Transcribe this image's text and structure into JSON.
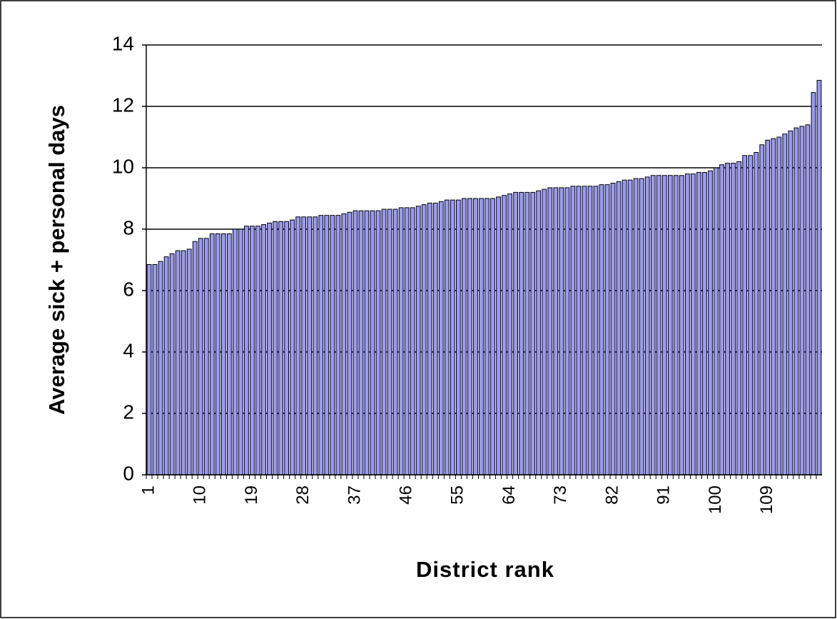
{
  "chart_data": {
    "type": "bar",
    "y_label": "Average sick + personal days",
    "x_label": "District rank",
    "categories": [
      "1",
      null,
      null,
      null,
      null,
      null,
      null,
      null,
      null,
      "10",
      null,
      null,
      null,
      null,
      null,
      null,
      null,
      null,
      "19",
      null,
      null,
      null,
      null,
      null,
      null,
      null,
      null,
      "28",
      null,
      null,
      null,
      null,
      null,
      null,
      null,
      null,
      "37",
      null,
      null,
      null,
      null,
      null,
      null,
      null,
      null,
      "46",
      null,
      null,
      null,
      null,
      null,
      null,
      null,
      null,
      "55",
      null,
      null,
      null,
      null,
      null,
      null,
      null,
      null,
      "64",
      null,
      null,
      null,
      null,
      null,
      null,
      null,
      null,
      "73",
      null,
      null,
      null,
      null,
      null,
      null,
      null,
      null,
      "82",
      null,
      null,
      null,
      null,
      null,
      null,
      null,
      null,
      "91",
      null,
      null,
      null,
      null,
      null,
      null,
      null,
      null,
      "100",
      null,
      null,
      null,
      null,
      null,
      null,
      null,
      null,
      "109",
      null,
      null,
      null,
      null,
      null,
      null,
      null,
      null,
      null
    ],
    "values": [
      6.85,
      6.85,
      6.95,
      7.1,
      7.2,
      7.3,
      7.3,
      7.35,
      7.6,
      7.7,
      7.7,
      7.85,
      7.85,
      7.85,
      7.85,
      8.0,
      8.0,
      8.1,
      8.1,
      8.1,
      8.15,
      8.2,
      8.25,
      8.25,
      8.25,
      8.3,
      8.4,
      8.4,
      8.4,
      8.4,
      8.45,
      8.45,
      8.45,
      8.45,
      8.5,
      8.55,
      8.6,
      8.6,
      8.6,
      8.6,
      8.6,
      8.65,
      8.65,
      8.65,
      8.7,
      8.7,
      8.7,
      8.75,
      8.8,
      8.85,
      8.85,
      8.9,
      8.95,
      8.95,
      8.95,
      9.0,
      9.0,
      9.0,
      9.0,
      9.0,
      9.0,
      9.05,
      9.1,
      9.15,
      9.2,
      9.2,
      9.2,
      9.2,
      9.25,
      9.3,
      9.35,
      9.35,
      9.35,
      9.35,
      9.4,
      9.4,
      9.4,
      9.4,
      9.4,
      9.45,
      9.45,
      9.5,
      9.55,
      9.6,
      9.6,
      9.65,
      9.65,
      9.7,
      9.75,
      9.75,
      9.75,
      9.75,
      9.75,
      9.75,
      9.8,
      9.8,
      9.85,
      9.85,
      9.9,
      10.0,
      10.1,
      10.15,
      10.15,
      10.2,
      10.4,
      10.4,
      10.5,
      10.75,
      10.9,
      10.95,
      11.0,
      11.1,
      11.2,
      11.3,
      11.35,
      11.4,
      12.45,
      12.85
    ],
    "color": "#9999ff",
    "ylim": [
      0,
      14
    ],
    "yticks": [
      0,
      2,
      4,
      6,
      8,
      10,
      12,
      14
    ],
    "grid": true
  }
}
